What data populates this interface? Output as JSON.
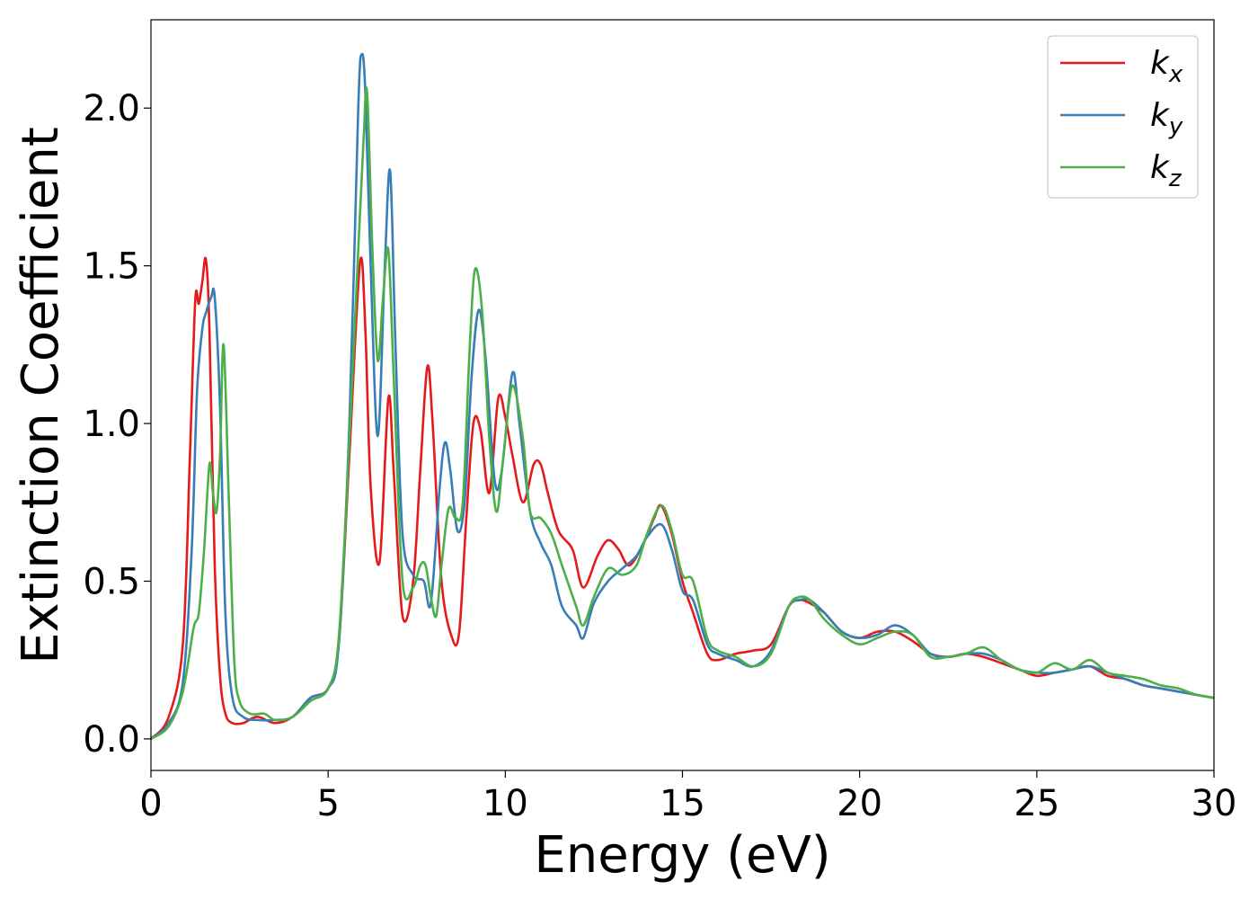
{
  "chart_data": {
    "type": "line",
    "xlabel": "Energy (eV)",
    "ylabel": "Extinction Coefficient",
    "xlim": [
      0,
      30
    ],
    "ylim": [
      -0.1,
      2.28
    ],
    "xticks": [
      0,
      5,
      10,
      15,
      20,
      25,
      30
    ],
    "xtick_labels": [
      "0",
      "5",
      "10",
      "15",
      "20",
      "25",
      "30"
    ],
    "yticks": [
      0.0,
      0.5,
      1.0,
      1.5,
      2.0
    ],
    "ytick_labels": [
      "0.0",
      "0.5",
      "1.0",
      "1.5",
      "2.0"
    ],
    "grid": false,
    "legend_position": "top-right",
    "series": [
      {
        "name": "k",
        "subscript": "x",
        "color": "#e41a1c",
        "x": [
          0,
          0.5,
          0.9,
          1.1,
          1.25,
          1.35,
          1.45,
          1.55,
          1.65,
          1.8,
          1.95,
          2.1,
          2.3,
          2.6,
          3.0,
          3.5,
          4.0,
          4.5,
          5.0,
          5.3,
          5.6,
          5.9,
          6.05,
          6.2,
          6.45,
          6.7,
          6.85,
          7.1,
          7.4,
          7.6,
          7.8,
          7.95,
          8.2,
          8.5,
          8.7,
          8.9,
          9.1,
          9.3,
          9.55,
          9.8,
          10.0,
          10.2,
          10.5,
          10.8,
          11.0,
          11.2,
          11.5,
          11.9,
          12.2,
          12.6,
          12.9,
          13.2,
          13.5,
          13.9,
          14.2,
          14.4,
          14.7,
          15.0,
          15.3,
          15.7,
          16.0,
          16.5,
          17.0,
          17.5,
          18.0,
          18.3,
          18.6,
          19.0,
          19.5,
          20.0,
          20.5,
          21.0,
          21.5,
          22.0,
          22.5,
          23.0,
          23.5,
          24.0,
          24.5,
          25.0,
          25.5,
          26.0,
          26.5,
          27.0,
          27.5,
          28.0,
          28.5,
          29.0,
          29.5,
          30.0
        ],
        "values": [
          0.0,
          0.07,
          0.3,
          0.9,
          1.39,
          1.38,
          1.45,
          1.52,
          1.3,
          0.55,
          0.2,
          0.08,
          0.05,
          0.05,
          0.07,
          0.05,
          0.07,
          0.13,
          0.16,
          0.3,
          0.9,
          1.51,
          1.3,
          0.8,
          0.56,
          1.08,
          0.85,
          0.39,
          0.5,
          0.85,
          1.18,
          1.0,
          0.5,
          0.32,
          0.34,
          0.7,
          1.0,
          0.98,
          0.78,
          1.08,
          1.02,
          0.9,
          0.75,
          0.87,
          0.87,
          0.78,
          0.66,
          0.6,
          0.48,
          0.58,
          0.63,
          0.6,
          0.55,
          0.62,
          0.7,
          0.74,
          0.65,
          0.5,
          0.4,
          0.27,
          0.25,
          0.27,
          0.28,
          0.3,
          0.42,
          0.44,
          0.43,
          0.4,
          0.34,
          0.32,
          0.34,
          0.34,
          0.31,
          0.27,
          0.26,
          0.27,
          0.26,
          0.24,
          0.22,
          0.2,
          0.21,
          0.22,
          0.23,
          0.2,
          0.19,
          0.17,
          0.16,
          0.15,
          0.14,
          0.13
        ]
      },
      {
        "name": "k",
        "subscript": "y",
        "color": "#377eb8",
        "x": [
          0,
          0.5,
          0.9,
          1.15,
          1.3,
          1.45,
          1.55,
          1.7,
          1.8,
          1.95,
          2.1,
          2.3,
          2.6,
          3.0,
          3.5,
          4.0,
          4.5,
          5.0,
          5.3,
          5.6,
          5.85,
          5.95,
          6.05,
          6.2,
          6.4,
          6.6,
          6.75,
          6.9,
          7.1,
          7.4,
          7.7,
          7.9,
          8.15,
          8.3,
          8.45,
          8.65,
          8.85,
          9.05,
          9.25,
          9.45,
          9.7,
          9.9,
          10.2,
          10.4,
          10.7,
          11.0,
          11.3,
          11.6,
          12.0,
          12.2,
          12.5,
          12.9,
          13.3,
          13.7,
          14.0,
          14.4,
          14.7,
          15.0,
          15.3,
          15.7,
          16.0,
          16.5,
          17.0,
          17.5,
          18.0,
          18.3,
          18.6,
          19.0,
          19.5,
          20.0,
          20.5,
          21.0,
          21.5,
          22.0,
          22.5,
          23.0,
          23.5,
          24.0,
          24.5,
          25.0,
          25.5,
          26.0,
          26.5,
          27.0,
          27.5,
          28.0,
          28.5,
          29.0,
          29.5,
          30.0
        ],
        "values": [
          0.0,
          0.05,
          0.18,
          0.6,
          1.1,
          1.3,
          1.35,
          1.4,
          1.4,
          1.05,
          0.4,
          0.13,
          0.07,
          0.06,
          0.06,
          0.07,
          0.13,
          0.16,
          0.3,
          1.0,
          2.0,
          2.17,
          2.05,
          1.5,
          0.96,
          1.5,
          1.8,
          1.25,
          0.65,
          0.52,
          0.5,
          0.43,
          0.8,
          0.94,
          0.85,
          0.66,
          0.75,
          1.15,
          1.36,
          1.2,
          0.82,
          0.85,
          1.16,
          1.0,
          0.72,
          0.62,
          0.55,
          0.42,
          0.36,
          0.32,
          0.43,
          0.5,
          0.54,
          0.58,
          0.64,
          0.68,
          0.6,
          0.47,
          0.44,
          0.3,
          0.27,
          0.25,
          0.23,
          0.28,
          0.42,
          0.44,
          0.44,
          0.4,
          0.34,
          0.32,
          0.33,
          0.36,
          0.33,
          0.27,
          0.26,
          0.27,
          0.27,
          0.25,
          0.22,
          0.21,
          0.21,
          0.22,
          0.23,
          0.21,
          0.19,
          0.17,
          0.16,
          0.15,
          0.14,
          0.13
        ]
      },
      {
        "name": "k",
        "subscript": "z",
        "color": "#4daf4a",
        "x": [
          0,
          0.5,
          0.9,
          1.2,
          1.35,
          1.5,
          1.65,
          1.75,
          1.85,
          1.95,
          2.05,
          2.2,
          2.35,
          2.5,
          2.8,
          3.2,
          3.5,
          4.0,
          4.5,
          5.0,
          5.3,
          5.6,
          5.85,
          6.0,
          6.1,
          6.25,
          6.4,
          6.55,
          6.7,
          6.85,
          7.1,
          7.4,
          7.6,
          7.75,
          7.9,
          8.05,
          8.2,
          8.4,
          8.6,
          8.8,
          9.0,
          9.15,
          9.35,
          9.55,
          9.75,
          9.95,
          10.2,
          10.5,
          10.7,
          11.0,
          11.3,
          11.6,
          12.0,
          12.2,
          12.5,
          12.9,
          13.3,
          13.7,
          14.0,
          14.4,
          14.7,
          15.0,
          15.3,
          15.7,
          16.0,
          16.5,
          17.0,
          17.5,
          18.0,
          18.3,
          18.6,
          19.0,
          19.5,
          20.0,
          20.5,
          21.0,
          21.5,
          22.0,
          22.5,
          23.0,
          23.5,
          24.0,
          24.5,
          25.0,
          25.5,
          26.0,
          26.5,
          27.0,
          27.5,
          28.0,
          28.5,
          29.0,
          29.5,
          30.0
        ],
        "values": [
          0.0,
          0.04,
          0.15,
          0.35,
          0.4,
          0.6,
          0.87,
          0.78,
          0.72,
          0.9,
          1.25,
          0.75,
          0.25,
          0.12,
          0.08,
          0.08,
          0.06,
          0.07,
          0.12,
          0.16,
          0.32,
          0.95,
          1.55,
          1.9,
          2.05,
          1.55,
          1.2,
          1.4,
          1.55,
          1.15,
          0.5,
          0.48,
          0.55,
          0.55,
          0.45,
          0.39,
          0.55,
          0.73,
          0.7,
          0.75,
          1.25,
          1.49,
          1.35,
          0.95,
          0.72,
          0.9,
          1.12,
          0.95,
          0.72,
          0.7,
          0.65,
          0.55,
          0.42,
          0.36,
          0.45,
          0.54,
          0.52,
          0.55,
          0.65,
          0.74,
          0.66,
          0.52,
          0.5,
          0.32,
          0.28,
          0.26,
          0.23,
          0.27,
          0.42,
          0.45,
          0.44,
          0.38,
          0.33,
          0.3,
          0.32,
          0.34,
          0.33,
          0.26,
          0.26,
          0.27,
          0.29,
          0.25,
          0.22,
          0.21,
          0.24,
          0.22,
          0.25,
          0.21,
          0.2,
          0.19,
          0.17,
          0.16,
          0.14,
          0.13
        ]
      }
    ]
  }
}
